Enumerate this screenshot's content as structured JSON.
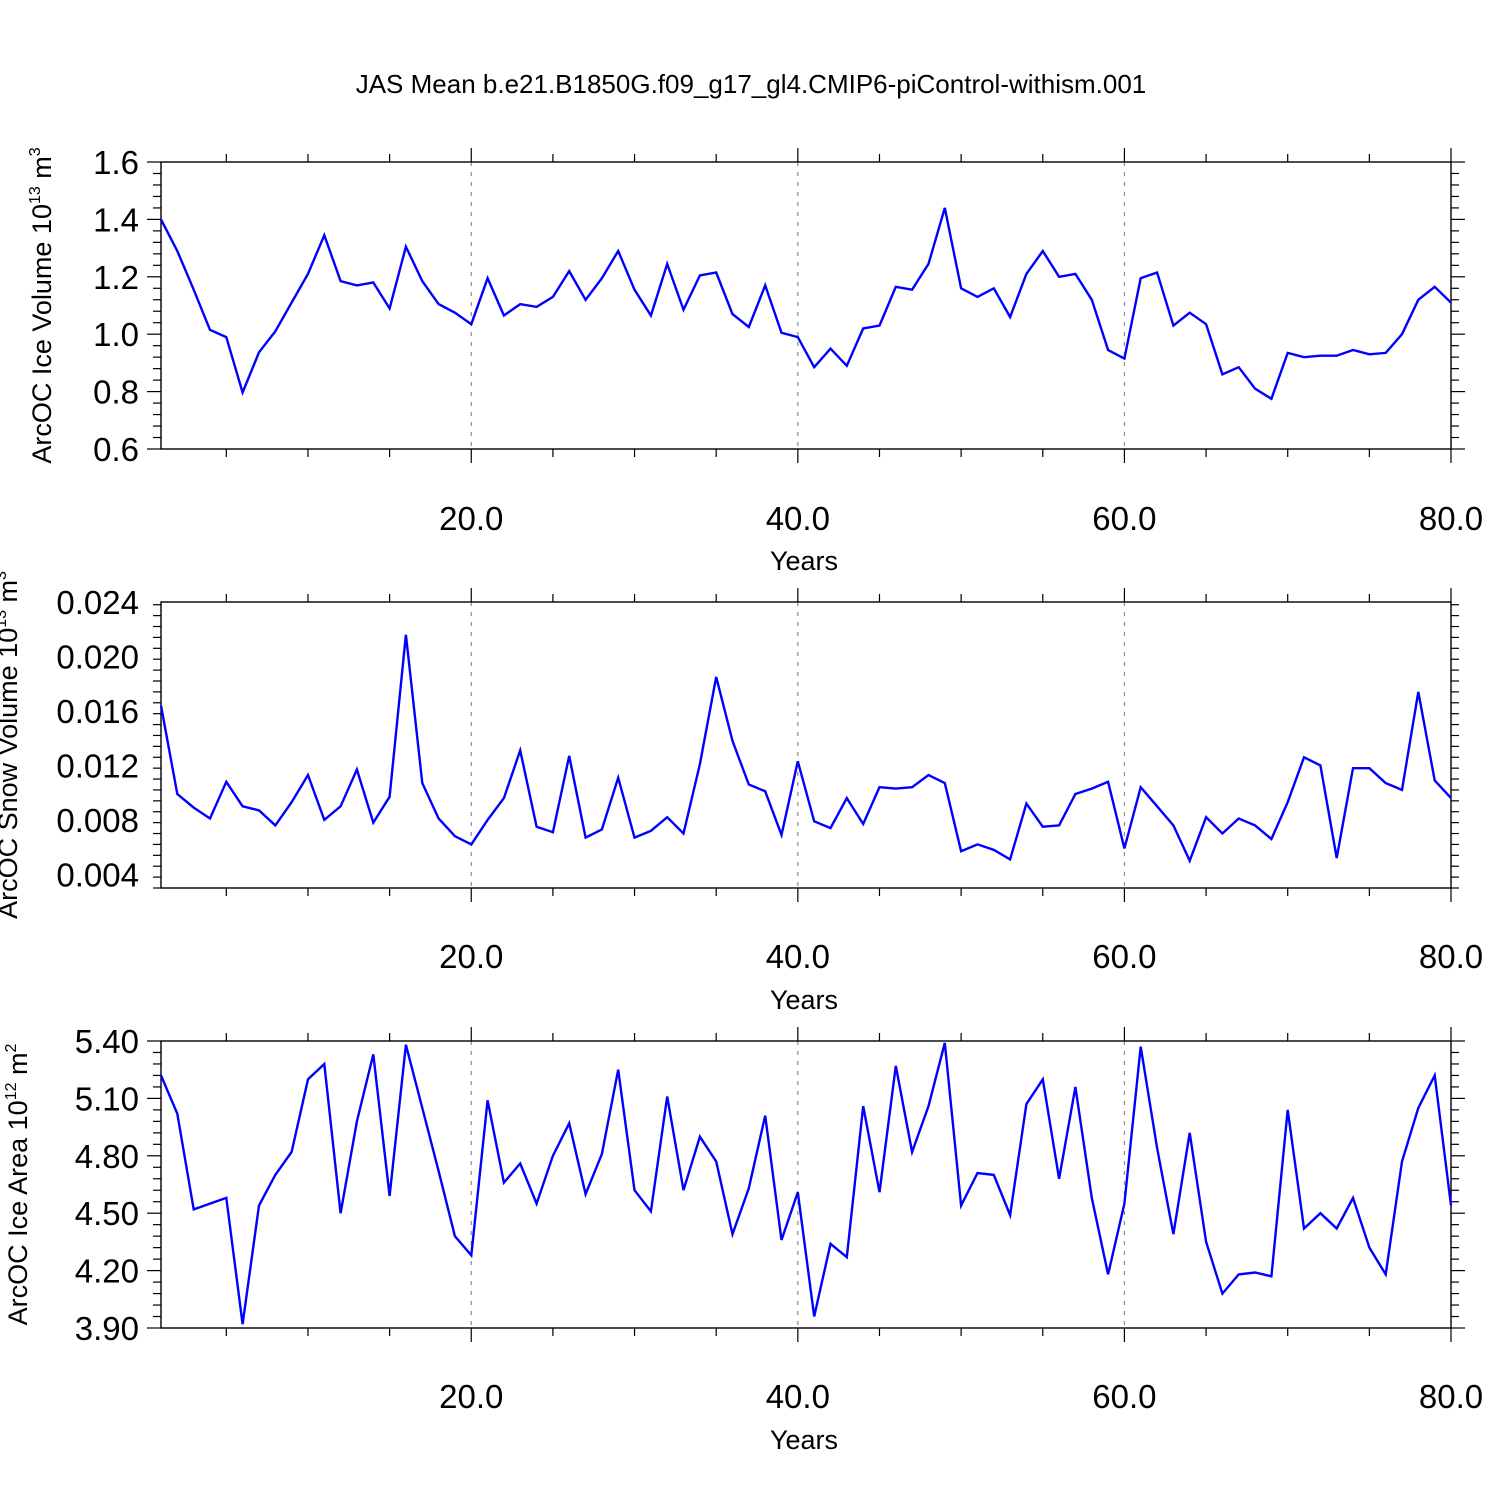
{
  "figure_title": "JAS Mean b.e21.B1850G.f09_g17_gl4.CMIP6-piControl-withism.001",
  "chart_data": [
    {
      "type": "line",
      "title": "",
      "xlabel": "Years",
      "ylabel": "ArcOC Ice Volume 10",
      "ylabel_exponent": "13",
      "ylabel_unit": " m",
      "ylabel_unit_exponent": "3",
      "xlim": [
        1,
        80
      ],
      "ylim": [
        0.6,
        1.6
      ],
      "x_ticks": [
        20,
        40,
        60,
        80
      ],
      "x_tick_labels": [
        "20.0",
        "40.0",
        "60.0",
        "80.0"
      ],
      "y_ticks": [
        0.6,
        0.8,
        1.0,
        1.2,
        1.4,
        1.6
      ],
      "y_tick_labels": [
        "0.6",
        "0.8",
        "1.0",
        "1.2",
        "1.4",
        "1.6"
      ],
      "grid": "dashed vertical at major x ticks",
      "line_color": "#0000ff",
      "series": [
        {
          "values": [
            1.4,
            1.29,
            1.155,
            1.015,
            0.99,
            0.797,
            0.937,
            1.01,
            1.11,
            1.21,
            1.345,
            1.185,
            1.17,
            1.18,
            1.09,
            1.305,
            1.185,
            1.105,
            1.075,
            1.035,
            1.195,
            1.065,
            1.105,
            1.095,
            1.13,
            1.22,
            1.12,
            1.195,
            1.29,
            1.155,
            1.065,
            1.245,
            1.085,
            1.205,
            1.215,
            1.07,
            1.025,
            1.17,
            1.005,
            0.99,
            0.885,
            0.95,
            0.89,
            1.02,
            1.03,
            1.165,
            1.155,
            1.245,
            1.44,
            1.16,
            1.13,
            1.16,
            1.06,
            1.21,
            1.29,
            1.2,
            1.21,
            1.12,
            0.945,
            0.915,
            1.195,
            1.215,
            1.03,
            1.075,
            1.035,
            0.86,
            0.885,
            0.81,
            0.775,
            0.935,
            0.92,
            0.925,
            0.925,
            0.945,
            0.93,
            0.935,
            1.0,
            1.12,
            1.165,
            1.11
          ]
        }
      ]
    },
    {
      "type": "line",
      "title": "",
      "xlabel": "Years",
      "ylabel": "ArcOC Snow Volume 10",
      "ylabel_exponent": "13",
      "ylabel_unit": " m",
      "ylabel_unit_exponent": "3",
      "xlim": [
        1,
        80
      ],
      "ylim": [
        0.003,
        0.024
      ],
      "x_ticks": [
        20,
        40,
        60,
        80
      ],
      "x_tick_labels": [
        "20.0",
        "40.0",
        "60.0",
        "80.0"
      ],
      "y_ticks": [
        0.004,
        0.008,
        0.012,
        0.016,
        0.02,
        0.024
      ],
      "y_tick_labels": [
        "0.004",
        "0.008",
        "0.012",
        "0.016",
        "0.020",
        "0.024"
      ],
      "grid": "dashed vertical at major x ticks",
      "line_color": "#0000ff",
      "series": [
        {
          "values": [
            0.0164,
            0.0099,
            0.0089,
            0.0081,
            0.0108,
            0.009,
            0.0087,
            0.0076,
            0.0093,
            0.0113,
            0.008,
            0.009,
            0.0117,
            0.0078,
            0.0097,
            0.0216,
            0.0107,
            0.0081,
            0.0068,
            0.0062,
            0.008,
            0.0096,
            0.0131,
            0.0075,
            0.0071,
            0.0127,
            0.0067,
            0.0073,
            0.0111,
            0.0067,
            0.0072,
            0.0082,
            0.007,
            0.0121,
            0.0185,
            0.0138,
            0.0106,
            0.0101,
            0.0069,
            0.0123,
            0.0079,
            0.0074,
            0.0096,
            0.0077,
            0.0104,
            0.0103,
            0.0104,
            0.0113,
            0.0107,
            0.0057,
            0.0062,
            0.0058,
            0.0051,
            0.0092,
            0.0075,
            0.0076,
            0.0099,
            0.0103,
            0.0108,
            0.0059,
            0.0104,
            0.009,
            0.0076,
            0.005,
            0.0082,
            0.007,
            0.0081,
            0.0076,
            0.0066,
            0.0093,
            0.0126,
            0.012,
            0.0052,
            0.0118,
            0.0118,
            0.0107,
            0.0102,
            0.0174,
            0.0109,
            0.0096
          ]
        }
      ]
    },
    {
      "type": "line",
      "title": "",
      "xlabel": "Years",
      "ylabel": "ArcOC Ice Area 10",
      "ylabel_exponent": "12",
      "ylabel_unit": " m",
      "ylabel_unit_exponent": "2",
      "xlim": [
        1,
        80
      ],
      "ylim": [
        3.9,
        5.4
      ],
      "x_ticks": [
        20,
        40,
        60,
        80
      ],
      "x_tick_labels": [
        "20.0",
        "40.0",
        "60.0",
        "80.0"
      ],
      "y_ticks": [
        3.9,
        4.2,
        4.5,
        4.8,
        5.1,
        5.4
      ],
      "y_tick_labels": [
        "3.90",
        "4.20",
        "4.50",
        "4.80",
        "5.10",
        "5.40"
      ],
      "grid": "dashed vertical at major x ticks",
      "line_color": "#0000ff",
      "series": [
        {
          "values": [
            5.22,
            5.02,
            4.52,
            4.55,
            4.58,
            3.92,
            4.54,
            4.7,
            4.82,
            5.2,
            5.28,
            4.5,
            4.98,
            5.33,
            4.59,
            5.38,
            5.05,
            4.72,
            4.38,
            4.28,
            5.09,
            4.66,
            4.76,
            4.55,
            4.8,
            4.97,
            4.6,
            4.81,
            5.25,
            4.62,
            4.51,
            5.11,
            4.62,
            4.9,
            4.77,
            4.39,
            4.63,
            5.01,
            4.36,
            4.61,
            3.96,
            4.34,
            4.27,
            5.06,
            4.61,
            5.27,
            4.82,
            5.06,
            5.39,
            4.54,
            4.71,
            4.7,
            4.49,
            5.07,
            5.2,
            4.68,
            5.16,
            4.58,
            4.18,
            4.55,
            5.37,
            4.84,
            4.39,
            4.92,
            4.35,
            4.08,
            4.18,
            4.19,
            4.17,
            5.04,
            4.42,
            4.5,
            4.42,
            4.58,
            4.32,
            4.18,
            4.77,
            5.05,
            5.22,
            4.54
          ]
        }
      ]
    }
  ]
}
